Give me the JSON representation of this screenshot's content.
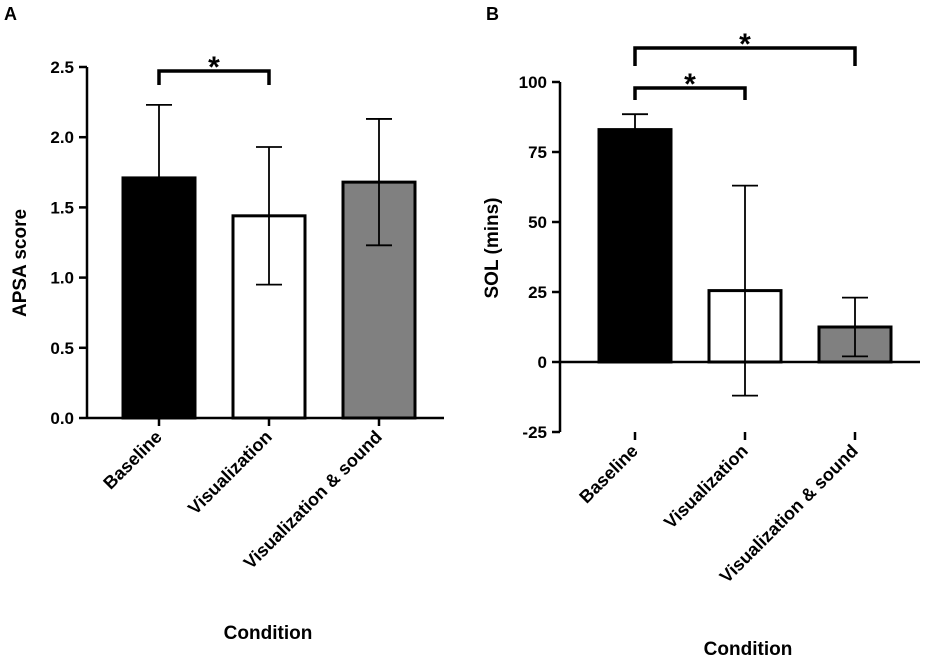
{
  "chart_data": [
    {
      "panel": "A",
      "type": "bar",
      "categories": [
        "Baseline",
        "Visualization",
        "Visualization & sound"
      ],
      "values": [
        1.71,
        1.44,
        1.68
      ],
      "errors": [
        0.52,
        0.49,
        0.45
      ],
      "bar_colors": [
        "#000000",
        "#ffffff",
        "#808080"
      ],
      "xlabel": "Condition",
      "ylabel": "APSA score",
      "ylim": [
        0,
        2.5
      ],
      "yticks": [
        "0.0",
        "0.5",
        "1.0",
        "1.5",
        "2.0",
        "2.5"
      ],
      "significance": [
        {
          "from": "Baseline",
          "to": "Visualization",
          "label": "*"
        }
      ]
    },
    {
      "panel": "B",
      "type": "bar",
      "categories": [
        "Baseline",
        "Visualization",
        "Visualization & sound"
      ],
      "values": [
        83,
        25.5,
        12.5
      ],
      "errors": [
        5.5,
        37.5,
        10.5
      ],
      "bar_colors": [
        "#000000",
        "#ffffff",
        "#808080"
      ],
      "xlabel": "Condition",
      "ylabel": "SOL (mins)",
      "ylim": [
        -25,
        100
      ],
      "yticks": [
        "-25",
        "0",
        "25",
        "50",
        "75",
        "100"
      ],
      "significance": [
        {
          "from": "Baseline",
          "to": "Visualization",
          "label": "*"
        },
        {
          "from": "Baseline",
          "to": "Visualization & sound",
          "label": "*"
        }
      ]
    }
  ]
}
